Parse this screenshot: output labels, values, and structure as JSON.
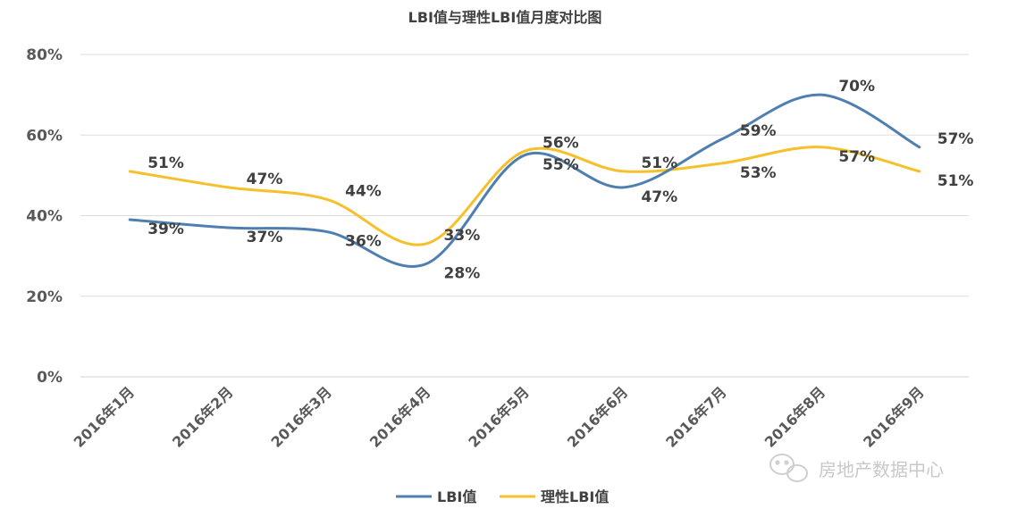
{
  "chart_data": {
    "type": "line",
    "title": "LBI值与理性LBI值月度对比图",
    "categories": [
      "2016年1月",
      "2016年2月",
      "2016年3月",
      "2016年4月",
      "2016年5月",
      "2016年6月",
      "2016年7月",
      "2016年8月",
      "2016年9月"
    ],
    "ylim": [
      0,
      80
    ],
    "yticks": [
      "0%",
      "20%",
      "40%",
      "60%",
      "80%"
    ],
    "grid": true,
    "smooth": true,
    "legend_position": "bottom",
    "series": [
      {
        "name": "LBI值",
        "color": "#4f7fb1",
        "values": [
          39,
          37,
          36,
          28,
          55,
          47,
          59,
          70,
          57
        ],
        "labels": [
          "39%",
          "37%",
          "36%",
          "28%",
          "55%",
          "47%",
          "59%",
          "70%",
          "57%"
        ]
      },
      {
        "name": "理性LBI值",
        "color": "#f6c02b",
        "values": [
          51,
          47,
          44,
          33,
          56,
          51,
          53,
          57,
          51
        ],
        "labels": [
          "51%",
          "47%",
          "44%",
          "33%",
          "56%",
          "51%",
          "53%",
          "57%",
          "51%"
        ]
      }
    ]
  },
  "watermark": {
    "text": "房地产数据中心",
    "icon": "wechat-icon"
  }
}
